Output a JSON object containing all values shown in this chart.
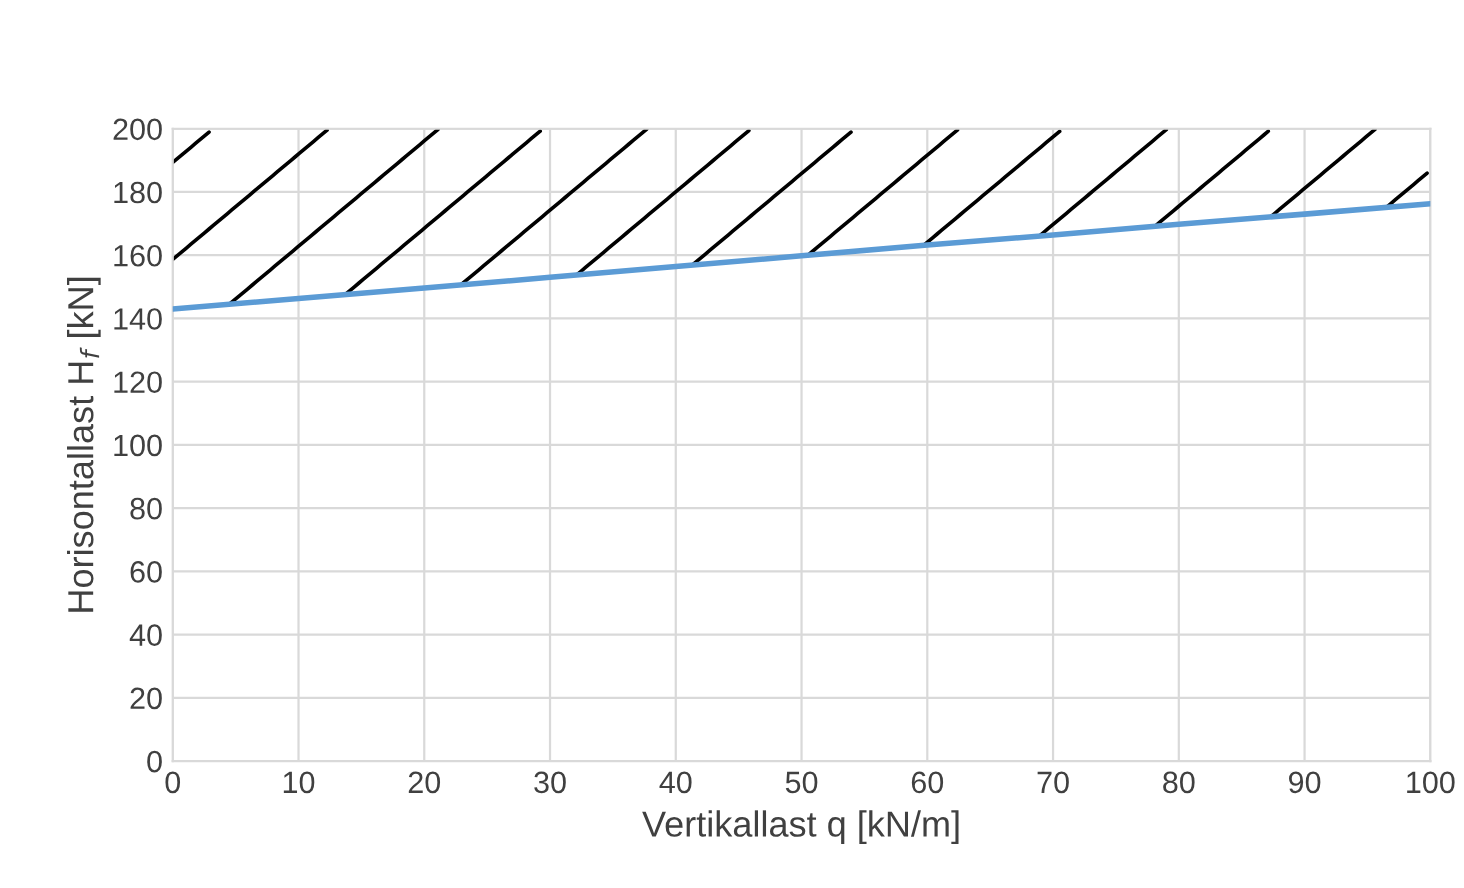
{
  "chart_data": {
    "type": "line",
    "xlabel": "Vertikallast q [kN/m]",
    "ylabel": "Horisontallast H$_{f}$ [kN]",
    "x": [
      0,
      10,
      20,
      30,
      40,
      50,
      60,
      70,
      80,
      90,
      100
    ],
    "series": [
      {
        "color": "#5b9bd5",
        "values": [
          143,
          146.3,
          149.6,
          153,
          156.4,
          159.8,
          163.2,
          166.4,
          169.8,
          173,
          176.3
        ]
      }
    ],
    "xlim": [
      0,
      100
    ],
    "ylim": [
      0,
      200
    ],
    "xticks": [
      0,
      10,
      20,
      30,
      40,
      50,
      60,
      70,
      80,
      90,
      100
    ],
    "yticks": [
      0,
      20,
      40,
      60,
      80,
      100,
      120,
      140,
      160,
      180,
      200
    ],
    "grid": true,
    "marker": "none",
    "line_style": "solid"
  }
}
